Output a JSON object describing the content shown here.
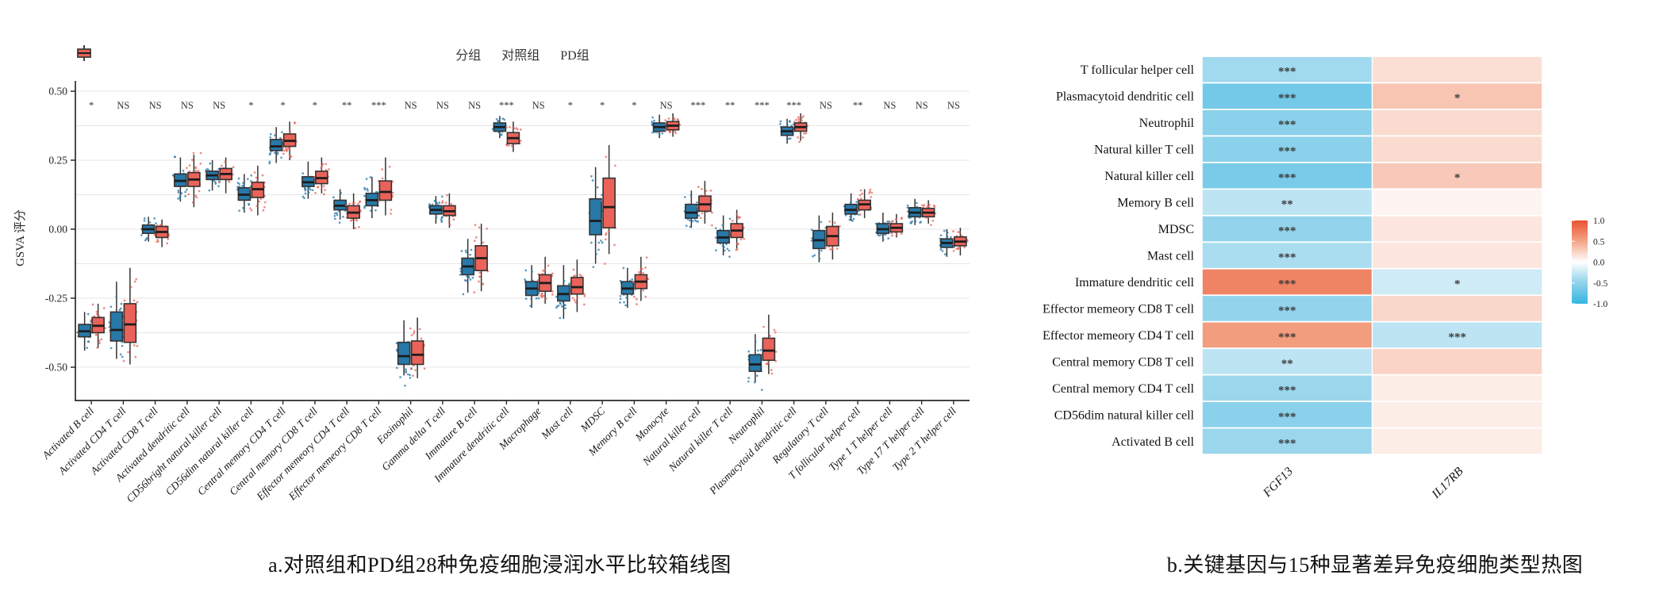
{
  "panel_a": {
    "caption": "a.对照组和PD组28种免疫细胞浸润水平比较箱线图",
    "legend": {
      "title": "分组",
      "groups": [
        {
          "label": "对照组",
          "color": "#2878a8"
        },
        {
          "label": "PD组",
          "color": "#e9635a"
        }
      ]
    }
  },
  "panel_b": {
    "caption": "b.关键基因与15种显著差异免疫细胞类型热图"
  },
  "chart_data": [
    {
      "type": "boxplot",
      "ylabel": "GSVA 评分",
      "ylim": [
        -0.62,
        0.5
      ],
      "yticks": [
        0.5,
        0.25,
        0.0,
        -0.25,
        -0.5
      ],
      "grid_step": 0.125,
      "legend_position": "top",
      "categories": [
        "Activated B cell",
        "Activated CD4 T cell",
        "Activated CD8 T cell",
        "Activated dendritic cell",
        "CD56bright natural killer cell",
        "CD56dim natural killer cell",
        "Central memory CD4 T cell",
        "Central memory CD8 T cell",
        "Effector memeory CD4 T cell",
        "Effector memeory CD8 T cell",
        "Eosinophil",
        "Gamma delta T cell",
        "Immature  B cell",
        "Immature dendritic cell",
        "Macrophage",
        "Mast cell",
        "MDSC",
        "Memory B cell",
        "Monocyte",
        "Natural killer cell",
        "Natural killer T cell",
        "Neutrophil",
        "Plasmacytoid dendritic cell",
        "Regulatory T cell",
        "T follicular helper cell",
        "Type 1 T helper cell",
        "Type 17 T helper cell",
        "Type 2 T helper cell"
      ],
      "significance": [
        "*",
        "NS",
        "NS",
        "NS",
        "NS",
        "*",
        "*",
        "*",
        "**",
        "***",
        "NS",
        "NS",
        "NS",
        "***",
        "NS",
        "*",
        "*",
        "*",
        "NS",
        "***",
        "**",
        "***",
        "***",
        "NS",
        "**",
        "NS",
        "NS",
        "NS"
      ],
      "series": [
        {
          "name": "对照组",
          "color": "#2878a8",
          "boxes": [
            {
              "lo": -0.44,
              "q1": -0.39,
              "med": -0.37,
              "q3": -0.345,
              "hi": -0.3
            },
            {
              "lo": -0.47,
              "q1": -0.405,
              "med": -0.365,
              "q3": -0.3,
              "hi": -0.19
            },
            {
              "lo": -0.045,
              "q1": -0.015,
              "med": 0.0,
              "q3": 0.015,
              "hi": 0.045
            },
            {
              "lo": 0.1,
              "q1": 0.155,
              "med": 0.175,
              "q3": 0.2,
              "hi": 0.26
            },
            {
              "lo": 0.14,
              "q1": 0.18,
              "med": 0.195,
              "q3": 0.21,
              "hi": 0.25
            },
            {
              "lo": 0.06,
              "q1": 0.105,
              "med": 0.125,
              "q3": 0.15,
              "hi": 0.2
            },
            {
              "lo": 0.24,
              "q1": 0.285,
              "med": 0.3,
              "q3": 0.325,
              "hi": 0.37
            },
            {
              "lo": 0.11,
              "q1": 0.155,
              "med": 0.17,
              "q3": 0.19,
              "hi": 0.245
            },
            {
              "lo": 0.035,
              "q1": 0.07,
              "med": 0.085,
              "q3": 0.105,
              "hi": 0.145
            },
            {
              "lo": 0.04,
              "q1": 0.085,
              "med": 0.105,
              "q3": 0.13,
              "hi": 0.19
            },
            {
              "lo": -0.53,
              "q1": -0.49,
              "med": -0.46,
              "q3": -0.41,
              "hi": -0.33
            },
            {
              "lo": 0.02,
              "q1": 0.055,
              "med": 0.07,
              "q3": 0.085,
              "hi": 0.12
            },
            {
              "lo": -0.23,
              "q1": -0.165,
              "med": -0.135,
              "q3": -0.105,
              "hi": -0.035
            },
            {
              "lo": 0.33,
              "q1": 0.355,
              "med": 0.37,
              "q3": 0.385,
              "hi": 0.41
            },
            {
              "lo": -0.285,
              "q1": -0.24,
              "med": -0.215,
              "q3": -0.19,
              "hi": -0.13
            },
            {
              "lo": -0.325,
              "q1": -0.26,
              "med": -0.235,
              "q3": -0.205,
              "hi": -0.13
            },
            {
              "lo": -0.125,
              "q1": -0.02,
              "med": 0.03,
              "q3": 0.11,
              "hi": 0.225
            },
            {
              "lo": -0.285,
              "q1": -0.235,
              "med": -0.215,
              "q3": -0.19,
              "hi": -0.14
            },
            {
              "lo": 0.33,
              "q1": 0.355,
              "med": 0.37,
              "q3": 0.385,
              "hi": 0.415
            },
            {
              "lo": 0.005,
              "q1": 0.04,
              "med": 0.06,
              "q3": 0.09,
              "hi": 0.14
            },
            {
              "lo": -0.095,
              "q1": -0.05,
              "med": -0.03,
              "q3": -0.005,
              "hi": 0.05
            },
            {
              "lo": -0.555,
              "q1": -0.515,
              "med": -0.49,
              "q3": -0.455,
              "hi": -0.38
            },
            {
              "lo": 0.31,
              "q1": 0.34,
              "med": 0.355,
              "q3": 0.37,
              "hi": 0.4
            },
            {
              "lo": -0.12,
              "q1": -0.07,
              "med": -0.04,
              "q3": -0.005,
              "hi": 0.05
            },
            {
              "lo": 0.03,
              "q1": 0.055,
              "med": 0.07,
              "q3": 0.09,
              "hi": 0.13
            },
            {
              "lo": -0.045,
              "q1": -0.015,
              "med": 0.0,
              "q3": 0.02,
              "hi": 0.06
            },
            {
              "lo": 0.015,
              "q1": 0.045,
              "med": 0.06,
              "q3": 0.078,
              "hi": 0.11
            },
            {
              "lo": -0.1,
              "q1": -0.066,
              "med": -0.05,
              "q3": -0.035,
              "hi": 0.0
            }
          ]
        },
        {
          "name": "PD组",
          "color": "#e9635a",
          "boxes": [
            {
              "lo": -0.43,
              "q1": -0.375,
              "med": -0.35,
              "q3": -0.32,
              "hi": -0.27
            },
            {
              "lo": -0.49,
              "q1": -0.41,
              "med": -0.345,
              "q3": -0.27,
              "hi": -0.14
            },
            {
              "lo": -0.065,
              "q1": -0.03,
              "med": -0.01,
              "q3": 0.01,
              "hi": 0.035
            },
            {
              "lo": 0.08,
              "q1": 0.155,
              "med": 0.18,
              "q3": 0.205,
              "hi": 0.27
            },
            {
              "lo": 0.13,
              "q1": 0.18,
              "med": 0.2,
              "q3": 0.22,
              "hi": 0.26
            },
            {
              "lo": 0.05,
              "q1": 0.115,
              "med": 0.145,
              "q3": 0.17,
              "hi": 0.23
            },
            {
              "lo": 0.25,
              "q1": 0.3,
              "med": 0.32,
              "q3": 0.345,
              "hi": 0.39
            },
            {
              "lo": 0.13,
              "q1": 0.165,
              "med": 0.185,
              "q3": 0.21,
              "hi": 0.26
            },
            {
              "lo": 0.0,
              "q1": 0.04,
              "med": 0.06,
              "q3": 0.085,
              "hi": 0.13
            },
            {
              "lo": 0.05,
              "q1": 0.105,
              "med": 0.135,
              "q3": 0.175,
              "hi": 0.26
            },
            {
              "lo": -0.54,
              "q1": -0.49,
              "med": -0.455,
              "q3": -0.405,
              "hi": -0.32
            },
            {
              "lo": 0.005,
              "q1": 0.05,
              "med": 0.065,
              "q3": 0.085,
              "hi": 0.13
            },
            {
              "lo": -0.225,
              "q1": -0.15,
              "med": -0.105,
              "q3": -0.06,
              "hi": 0.02
            },
            {
              "lo": 0.28,
              "q1": 0.31,
              "med": 0.33,
              "q3": 0.35,
              "hi": 0.39
            },
            {
              "lo": -0.27,
              "q1": -0.225,
              "med": -0.195,
              "q3": -0.165,
              "hi": -0.1
            },
            {
              "lo": -0.3,
              "q1": -0.235,
              "med": -0.21,
              "q3": -0.175,
              "hi": -0.11
            },
            {
              "lo": -0.09,
              "q1": 0.005,
              "med": 0.08,
              "q3": 0.185,
              "hi": 0.305
            },
            {
              "lo": -0.26,
              "q1": -0.215,
              "med": -0.19,
              "q3": -0.165,
              "hi": -0.1
            },
            {
              "lo": 0.335,
              "q1": 0.36,
              "med": 0.375,
              "q3": 0.39,
              "hi": 0.42
            },
            {
              "lo": 0.02,
              "q1": 0.065,
              "med": 0.09,
              "q3": 0.12,
              "hi": 0.175
            },
            {
              "lo": -0.07,
              "q1": -0.03,
              "med": -0.005,
              "q3": 0.02,
              "hi": 0.07
            },
            {
              "lo": -0.525,
              "q1": -0.475,
              "med": -0.44,
              "q3": -0.395,
              "hi": -0.31
            },
            {
              "lo": 0.32,
              "q1": 0.355,
              "med": 0.37,
              "q3": 0.385,
              "hi": 0.42
            },
            {
              "lo": -0.11,
              "q1": -0.06,
              "med": -0.025,
              "q3": 0.01,
              "hi": 0.06
            },
            {
              "lo": 0.04,
              "q1": 0.07,
              "med": 0.09,
              "q3": 0.105,
              "hi": 0.145
            },
            {
              "lo": -0.03,
              "q1": -0.01,
              "med": 0.005,
              "q3": 0.02,
              "hi": 0.055
            },
            {
              "lo": 0.02,
              "q1": 0.045,
              "med": 0.06,
              "q3": 0.075,
              "hi": 0.105
            },
            {
              "lo": -0.095,
              "q1": -0.06,
              "med": -0.045,
              "q3": -0.028,
              "hi": 0.005
            }
          ]
        }
      ]
    },
    {
      "type": "heatmap",
      "columns": [
        "FGF13",
        "IL17RB"
      ],
      "rows": [
        "T follicular helper cell",
        "Plasmacytoid dendritic cell",
        "Neutrophil",
        "Natural killer T cell",
        "Natural killer cell",
        "Memory B cell",
        "MDSC",
        "Mast cell",
        "Immature dendritic cell",
        "Effector memeory CD8 T cell",
        "Effector memeory CD4 T cell",
        "Central memory CD8 T cell",
        "Central memory CD4 T cell",
        "CD56dim natural killer cell",
        "Activated B cell"
      ],
      "values": [
        [
          -0.42,
          0.18
        ],
        [
          -0.65,
          0.32
        ],
        [
          -0.52,
          0.2
        ],
        [
          -0.52,
          0.2
        ],
        [
          -0.62,
          0.3
        ],
        [
          -0.3,
          0.06
        ],
        [
          -0.48,
          0.14
        ],
        [
          -0.38,
          0.14
        ],
        [
          0.7,
          -0.22
        ],
        [
          -0.48,
          0.22
        ],
        [
          0.55,
          -0.3
        ],
        [
          -0.3,
          0.24
        ],
        [
          -0.45,
          0.1
        ],
        [
          -0.52,
          0.1
        ],
        [
          -0.45,
          0.1
        ]
      ],
      "stars": [
        [
          "***",
          ""
        ],
        [
          "***",
          "*"
        ],
        [
          "***",
          ""
        ],
        [
          "***",
          ""
        ],
        [
          "***",
          "*"
        ],
        [
          "**",
          ""
        ],
        [
          "***",
          ""
        ],
        [
          "***",
          ""
        ],
        [
          "***",
          "*"
        ],
        [
          "***",
          ""
        ],
        [
          "***",
          "***"
        ],
        [
          "**",
          ""
        ],
        [
          "***",
          ""
        ],
        [
          "***",
          ""
        ],
        [
          "***",
          ""
        ]
      ],
      "colorbar": {
        "range": [
          -1.0,
          1.0
        ],
        "ticks": [
          1.0,
          0.5,
          0.0,
          -0.5,
          -1.0
        ],
        "color_high": "#e8532f",
        "color_mid": "#ffffff",
        "color_low": "#35b5e2"
      }
    }
  ]
}
